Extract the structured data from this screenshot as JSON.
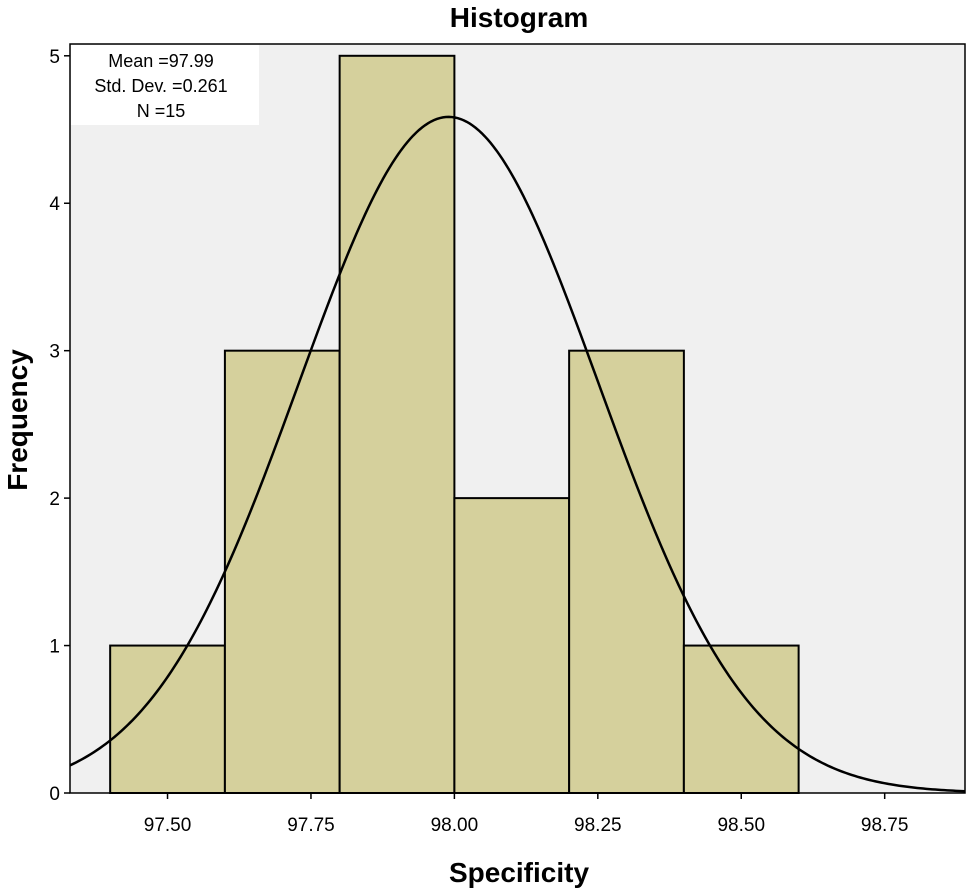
{
  "chart_data": {
    "type": "bar",
    "title": "Histogram",
    "xlabel": "Specificity",
    "ylabel": "Frequency",
    "bins": [
      {
        "start": 97.4,
        "end": 97.6,
        "count": 1
      },
      {
        "start": 97.6,
        "end": 97.8,
        "count": 3
      },
      {
        "start": 97.8,
        "end": 98.0,
        "count": 5
      },
      {
        "start": 98.0,
        "end": 98.2,
        "count": 2
      },
      {
        "start": 98.2,
        "end": 98.4,
        "count": 3
      },
      {
        "start": 98.4,
        "end": 98.6,
        "count": 1
      }
    ],
    "xlim": [
      97.33,
      98.89
    ],
    "ylim": [
      0,
      5.08
    ],
    "x_ticks": [
      97.5,
      97.75,
      98.0,
      98.25,
      98.5,
      98.75
    ],
    "x_tick_labels": [
      "97.50",
      "97.75",
      "98.00",
      "98.25",
      "98.50",
      "98.75"
    ],
    "y_ticks": [
      0,
      1,
      2,
      3,
      4,
      5
    ],
    "y_tick_labels": [
      "0",
      "1",
      "2",
      "3",
      "4",
      "5"
    ],
    "normal_curve": {
      "mean": 97.99,
      "std_dev": 0.261,
      "n": 15,
      "bin_width": 0.2
    },
    "stats_box": {
      "mean_label": "Mean =97.99",
      "std_label": "Std. Dev. =0.261",
      "n_label": "N =15"
    },
    "colors": {
      "bar_fill": "#d5d09c",
      "bar_stroke": "#000000",
      "plot_background": "#f0f0f0",
      "curve": "#000000"
    }
  }
}
